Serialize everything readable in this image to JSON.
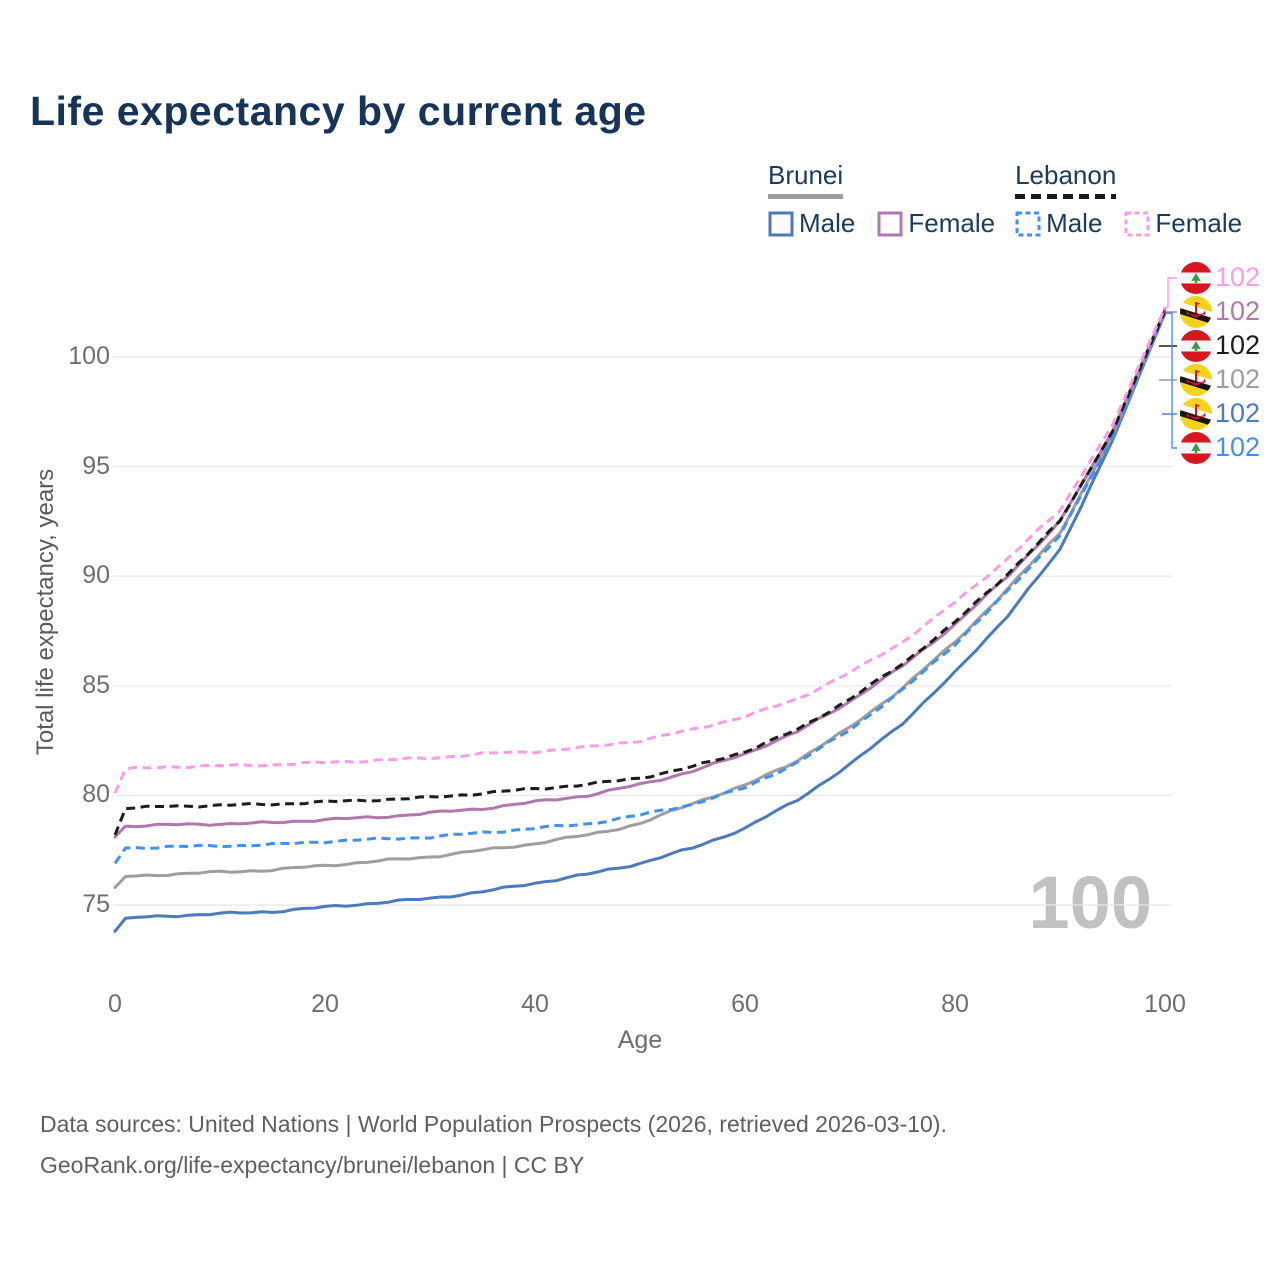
{
  "title": "Life expectancy by current age",
  "legend": {
    "groups": [
      {
        "country": "Brunei",
        "line_style": "solid",
        "underline_color": "#9e9e9e",
        "items": [
          {
            "label": "Male",
            "color": "#4a7abf",
            "dashed": false
          },
          {
            "label": "Female",
            "color": "#b277ae",
            "dashed": false
          }
        ]
      },
      {
        "country": "Lebanon",
        "line_style": "dashed",
        "underline_color": "#1a1a1a",
        "items": [
          {
            "label": "Male",
            "color": "#418ffd",
            "dashed": true
          },
          {
            "label": "Female",
            "color": "#fc9be6",
            "dashed": true
          }
        ]
      }
    ]
  },
  "chart_data": {
    "type": "line",
    "title": "Life expectancy by current age",
    "xlabel": "Age",
    "ylabel": "Total life expectancy, years",
    "x_ticks": [
      0,
      20,
      40,
      60,
      80,
      100
    ],
    "y_ticks": [
      75,
      80,
      85,
      90,
      95,
      100
    ],
    "xlim": [
      0,
      100
    ],
    "ylim": [
      73.5,
      103
    ],
    "grid": "horizontal",
    "legend_position": "top-right",
    "x": [
      0,
      1,
      5,
      10,
      15,
      20,
      25,
      30,
      35,
      40,
      45,
      50,
      55,
      60,
      65,
      70,
      75,
      80,
      85,
      90,
      95,
      100
    ],
    "series": [
      {
        "name": "Brunei Male",
        "country": "Brunei",
        "component": "Male",
        "color": "#4a7abf",
        "dashed": false,
        "values": [
          73.8,
          74.4,
          74.5,
          74.6,
          74.7,
          74.9,
          75.1,
          75.3,
          75.6,
          76.0,
          76.4,
          76.9,
          77.6,
          78.5,
          79.8,
          81.4,
          83.3,
          85.6,
          88.2,
          91.2,
          96.2,
          102.0
        ]
      },
      {
        "name": "Brunei Total",
        "country": "Brunei",
        "component": "Total",
        "color": "#9e9e9e",
        "dashed": false,
        "values": [
          75.8,
          76.3,
          76.4,
          76.5,
          76.6,
          76.8,
          77.0,
          77.2,
          77.5,
          77.8,
          78.2,
          78.7,
          79.65,
          80.45,
          81.6,
          83.1,
          84.9,
          87.0,
          89.4,
          92.0,
          96.4,
          102.05
        ]
      },
      {
        "name": "Lebanon Male",
        "country": "Lebanon",
        "component": "Male",
        "color": "#418ffd",
        "dashed": true,
        "values": [
          76.9,
          77.6,
          77.65,
          77.7,
          77.75,
          77.9,
          78.0,
          78.1,
          78.3,
          78.5,
          78.7,
          79.1,
          79.6,
          80.35,
          81.5,
          83.0,
          84.8,
          86.9,
          89.3,
          91.9,
          96.3,
          102.0
        ]
      },
      {
        "name": "Brunei Female",
        "country": "Brunei",
        "component": "Female",
        "color": "#b277ae",
        "dashed": false,
        "values": [
          78.1,
          78.6,
          78.65,
          78.7,
          78.75,
          78.9,
          79.0,
          79.2,
          79.4,
          79.7,
          80.0,
          80.5,
          81.1,
          81.9,
          82.9,
          84.3,
          85.9,
          87.8,
          90.0,
          92.5,
          96.6,
          102.15
        ]
      },
      {
        "name": "Lebanon Total",
        "country": "Lebanon",
        "component": "Total",
        "color": "#1c1c1c",
        "dashed": true,
        "values": [
          78.2,
          79.4,
          79.5,
          79.55,
          79.6,
          79.7,
          79.8,
          79.9,
          80.1,
          80.3,
          80.5,
          80.8,
          81.3,
          82.0,
          83.0,
          84.4,
          86.0,
          87.9,
          90.1,
          92.5,
          96.6,
          102.1
        ]
      },
      {
        "name": "Lebanon Female",
        "country": "Lebanon",
        "component": "Female",
        "color": "#fc9be6",
        "dashed": true,
        "values": [
          80.1,
          81.2,
          81.3,
          81.35,
          81.4,
          81.5,
          81.6,
          81.7,
          81.9,
          82.0,
          82.2,
          82.5,
          83.0,
          83.6,
          84.4,
          85.6,
          87.0,
          88.8,
          90.8,
          93.0,
          96.9,
          102.25
        ]
      }
    ],
    "end_labels": [
      {
        "series_index": 5,
        "value": "102",
        "flag": "Lebanon"
      },
      {
        "series_index": 3,
        "value": "102",
        "flag": "Brunei"
      },
      {
        "series_index": 4,
        "value": "102",
        "flag": "Lebanon"
      },
      {
        "series_index": 1,
        "value": "102",
        "flag": "Brunei"
      },
      {
        "series_index": 0,
        "value": "102",
        "flag": "Brunei"
      },
      {
        "series_index": 2,
        "value": "102",
        "flag": "Lebanon"
      }
    ],
    "watermark": "100"
  },
  "footer": {
    "line1": "Data sources: United Nations | World Population Prospects (2026, retrieved 2026-03-10).",
    "line2": "GeoRank.org/life-expectancy/brunei/lebanon | CC BY"
  },
  "colors": {
    "title": "#16335a",
    "legend_text": "#1b3a5e",
    "axis_text": "#6e6e6e",
    "grid": "#e8e8e8",
    "watermark": "#c1c1c1",
    "footer_text": "#5f5f5f",
    "lebanon_flag_red": "#d7161f",
    "lebanon_flag_green": "#2f9e45",
    "brunei_flag_yellow": "#f6d31b",
    "brunei_flag_red": "#ce1126"
  }
}
